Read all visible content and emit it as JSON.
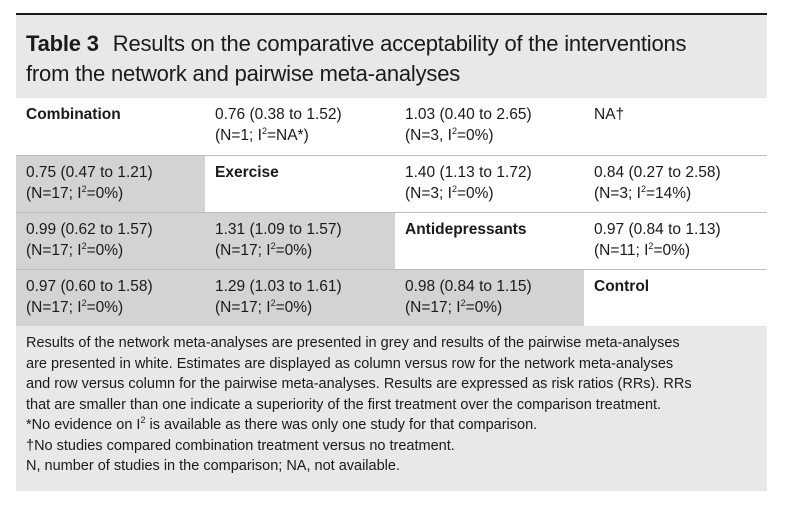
{
  "caption": {
    "label": "Table 3",
    "line1": "Results on the comparative acceptability of the interventions",
    "line2": "from the network and pairwise meta-analyses"
  },
  "rows": [
    [
      {
        "kind": "diag",
        "text": "Combination"
      },
      {
        "kind": "white",
        "l1": "0.76 (0.38 to 1.52)",
        "l2a": "(N=1; I",
        "l2b": "=NA*)"
      },
      {
        "kind": "white",
        "l1": "1.03 (0.40 to 2.65)",
        "l2a": "(N=3, I",
        "l2b": "=0%)"
      },
      {
        "kind": "white",
        "l1": "NA†"
      }
    ],
    [
      {
        "kind": "grey",
        "l1": "0.75 (0.47 to 1.21)",
        "l2a": "(N=17; I",
        "l2b": "=0%)"
      },
      {
        "kind": "diag",
        "text": "Exercise"
      },
      {
        "kind": "white",
        "l1": "1.40 (1.13 to 1.72)",
        "l2a": "(N=3; I",
        "l2b": "=0%)"
      },
      {
        "kind": "white",
        "l1": "0.84 (0.27 to 2.58)",
        "l2a": "(N=3; I",
        "l2b": "=14%)"
      }
    ],
    [
      {
        "kind": "grey",
        "l1": "0.99 (0.62 to 1.57)",
        "l2a": "(N=17; I",
        "l2b": "=0%)"
      },
      {
        "kind": "grey",
        "l1": "1.31 (1.09 to 1.57)",
        "l2a": "(N=17; I",
        "l2b": "=0%)"
      },
      {
        "kind": "diag",
        "text": "Antidepressants"
      },
      {
        "kind": "white",
        "l1": "0.97 (0.84 to 1.13)",
        "l2a": "(N=11; I",
        "l2b": "=0%)"
      }
    ],
    [
      {
        "kind": "grey",
        "l1": "0.97 (0.60 to 1.58)",
        "l2a": "(N=17; I",
        "l2b": "=0%)"
      },
      {
        "kind": "grey",
        "l1": "1.29 (1.03 to 1.61)",
        "l2a": "(N=17; I",
        "l2b": "=0%)"
      },
      {
        "kind": "grey",
        "l1": "0.98 (0.84 to 1.15)",
        "l2a": "(N=17; I",
        "l2b": "=0%)"
      },
      {
        "kind": "diag",
        "text": "Control"
      }
    ]
  ],
  "sup2": "2",
  "notes": {
    "n1": "Results of the network meta-analyses are presented in grey and results of the pairwise meta-analyses",
    "n2": "are presented in white. Estimates are displayed as column versus row for the network meta-analyses",
    "n3": "and row versus column for the pairwise meta-analyses. Results are expressed as risk ratios (RRs). RRs",
    "n4": "that are smaller than one indicate a superiority of the first treatment over the comparison treatment.",
    "n5a": "*No evidence on I",
    "n5b": " is available as there was only one study for that comparison.",
    "n6": "†No studies compared combination treatment versus no treatment.",
    "n7": "N, number of studies in the comparison; NA, not available."
  }
}
